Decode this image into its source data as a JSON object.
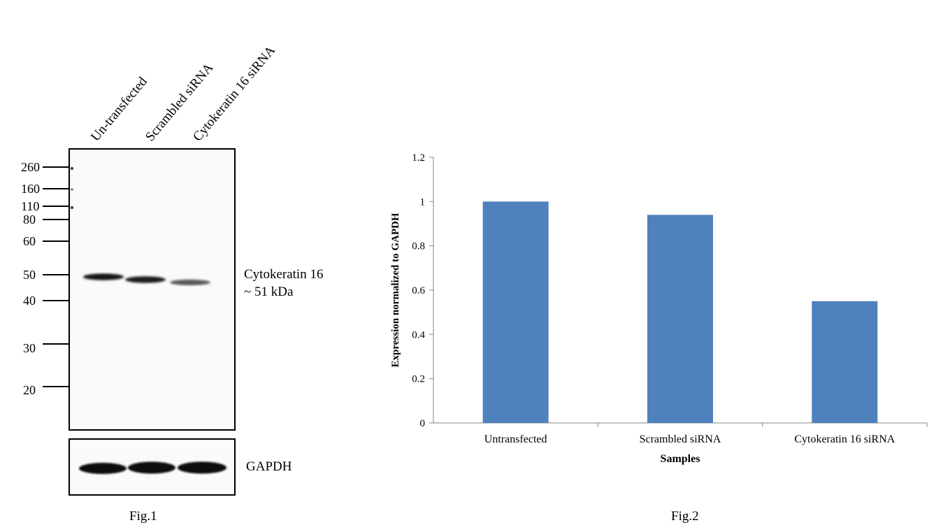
{
  "blot": {
    "lanes": [
      "Un-transfected",
      "Scrambled siRNA",
      "Cytokeratin 16 siRNA"
    ],
    "markers": [
      "260",
      "160",
      "110",
      "80",
      "60",
      "50",
      "40",
      "30",
      "20"
    ],
    "target_label_1": "Cytokeratin 16",
    "target_label_2": "~ 51 kDa",
    "control_label": "GAPDH",
    "caption": "Fig.1",
    "band_intensity": [
      1.0,
      0.94,
      0.55
    ]
  },
  "chart_data": {
    "type": "bar",
    "categories": [
      "Untransfected",
      "Scrambled siRNA",
      "Cytokeratin 16 siRNA"
    ],
    "values": [
      1.0,
      0.94,
      0.55
    ],
    "title": "",
    "xlabel": "Samples",
    "ylabel": "Expression normalized to GAPDH",
    "ylim": [
      0,
      1.2
    ],
    "yticks": [
      "0",
      "0.2",
      "0.4",
      "0.6",
      "0.8",
      "1",
      "1.2"
    ],
    "bar_color": "#4f81bd",
    "grid": false,
    "legend": "none"
  },
  "chart_caption": "Fig.2"
}
